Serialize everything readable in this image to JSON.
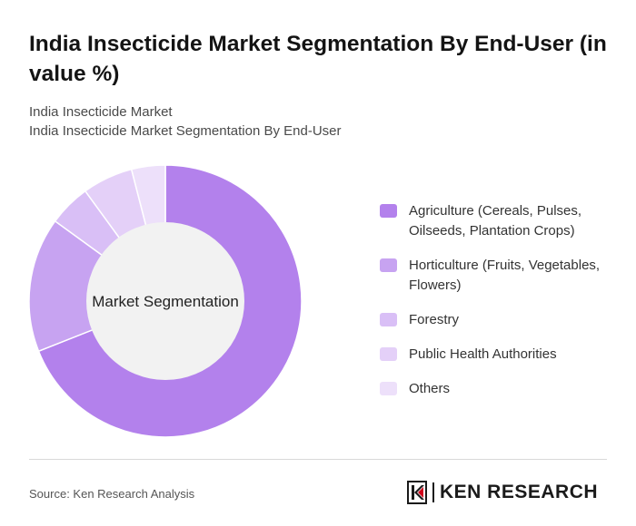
{
  "header": {
    "title": "India Insecticide Market Segmentation By End-User (in value %)",
    "breadcrumb": [
      "India Insecticide Market",
      "India Insecticide Market Segmentation By End-User"
    ]
  },
  "chart_data": {
    "type": "pie",
    "variant": "donut",
    "center_label": "Market Segmentation",
    "categories": [
      "Agriculture (Cereals, Pulses, Oilseeds, Plantation Crops)",
      "Horticulture (Fruits, Vegetables, Flowers)",
      "Forestry",
      "Public Health Authorities",
      "Others"
    ],
    "values": [
      69,
      16,
      5,
      6,
      4
    ],
    "colors": [
      "#b381ec",
      "#c7a3f1",
      "#d9bff6",
      "#e4d0f8",
      "#ede0fa"
    ],
    "legend_position": "right",
    "hole_color": "#f2f2f2"
  },
  "footer": {
    "source": "Source: Ken Research Analysis",
    "logo_text": "KEN RESEARCH"
  }
}
